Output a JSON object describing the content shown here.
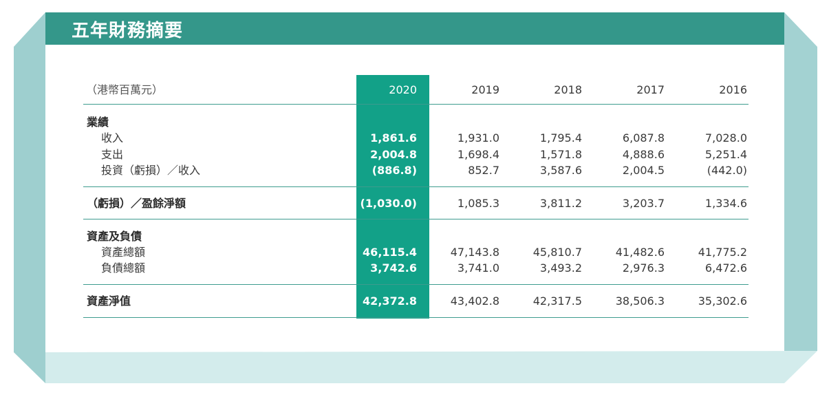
{
  "title": "五年財務摘要",
  "header": {
    "unit_label": "（港幣百萬元）",
    "years": [
      "2020",
      "2019",
      "2018",
      "2017",
      "2016"
    ]
  },
  "sections": {
    "results": {
      "heading": "業績",
      "rows": [
        {
          "label": "收入",
          "values": [
            "1,861.6",
            "1,931.0",
            "1,795.4",
            "6,087.8",
            "7,028.0"
          ]
        },
        {
          "label": "支出",
          "values": [
            "2,004.8",
            "1,698.4",
            "1,571.8",
            "4,888.6",
            "5,251.4"
          ]
        },
        {
          "label": "投資（虧損）／收入",
          "values": [
            "(886.8)",
            "852.7",
            "3,587.6",
            "2,004.5",
            "(442.0)"
          ]
        }
      ]
    },
    "net": {
      "label": "（虧損）／盈餘淨額",
      "values": [
        "(1,030.0)",
        "1,085.3",
        "3,811.2",
        "3,203.7",
        "1,334.6"
      ]
    },
    "assets": {
      "heading": "資產及負債",
      "rows": [
        {
          "label": "資產總額",
          "values": [
            "46,115.4",
            "47,143.8",
            "45,810.7",
            "41,482.6",
            "41,775.2"
          ]
        },
        {
          "label": "負債總額",
          "values": [
            "3,742.6",
            "3,741.0",
            "3,493.2",
            "2,976.3",
            "6,472.6"
          ]
        }
      ]
    },
    "net_assets": {
      "label": "資產淨值",
      "values": [
        "42,372.8",
        "43,402.8",
        "42,317.5",
        "38,506.3",
        "35,302.6"
      ]
    }
  },
  "colors": {
    "title_bar": "#34978a",
    "highlight_column": "#12a188",
    "frame_dark": "#9ecfcf",
    "frame_light": "#d3ecec",
    "rule": "#3d9b8e"
  }
}
